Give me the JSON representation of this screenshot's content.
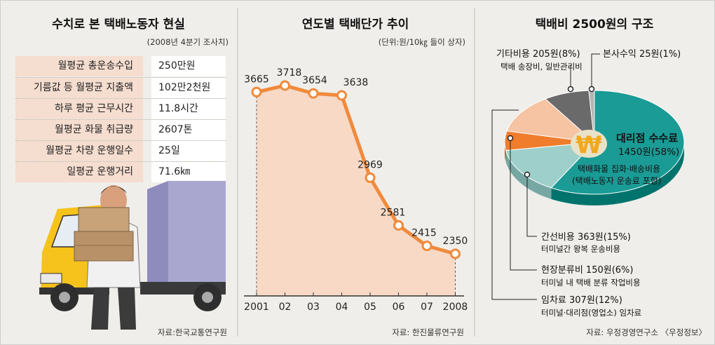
{
  "panel1": {
    "title": "수치로 본 택배노동자 현실",
    "note": "(2008년 4분기 조사치)",
    "rows": [
      {
        "label": "월평균 총운송수입",
        "value": "250만원"
      },
      {
        "label": "기름값 등 월평균 지출액",
        "value": "102만2천원"
      },
      {
        "label": "하루 평균 근무시간",
        "value": "11.8시간"
      },
      {
        "label": "월평균 화물 취급량",
        "value": "2607톤"
      },
      {
        "label": "월평균 차량 운행일수",
        "value": "25일"
      },
      {
        "label": "일평균 운행거리",
        "value": "71.6㎞"
      }
    ],
    "source": "자료:한국교통연구원",
    "illustration": "delivery-worker-with-truck"
  },
  "panel2": {
    "title": "연도별 택배단가 추이",
    "note": "(단위:원/10㎏ 들이 상자)",
    "source": "자료: 한진물류연구원"
  },
  "panel3": {
    "title": "택배비 2500원의 구조",
    "center_label_1": "대리점 수수료",
    "center_label_2": "1450원(58%)",
    "center_sub_1": "택배화물 집화·배송비용",
    "center_sub_2": "(택배노동자 운송료 포함)",
    "callouts": [
      {
        "main": "기타비용 205원(8%)",
        "sub": "택배 송장비, 일반관리비"
      },
      {
        "main": "본사수익 25원(1%)",
        "sub": ""
      },
      {
        "main": "간선비용 363원(15%)",
        "sub": "터미널간 왕복 운송비용"
      },
      {
        "main": "현장분류비 150원(6%)",
        "sub": "터미널 내 택배 분류 작업비용"
      },
      {
        "main": "임차료 307원(12%)",
        "sub": "터미널·대리점(영업소) 임차료"
      }
    ],
    "source": "자료: 우정경영연구소 〈우정정보〉",
    "won_icon": "won-sign-icon"
  },
  "colors": {
    "line": "#f08a3c",
    "area": "#f7d9c6",
    "agency": "#1a9b95",
    "trunk": "#9fcfcb",
    "sorting": "#ef7d2c",
    "rent": "#f6c3a3",
    "other": "#6a6a6a",
    "hq": "#b5b5b5"
  },
  "chart_data": [
    {
      "type": "line",
      "title": "연도별 택배단가 추이",
      "unit": "원/10㎏ 들이 상자",
      "x": [
        "2001",
        "02",
        "03",
        "04",
        "05",
        "06",
        "07",
        "2008"
      ],
      "series": [
        {
          "values": [
            3665,
            3718,
            3654,
            3638,
            2969,
            2581,
            2415,
            2350
          ]
        }
      ]
    },
    {
      "type": "pie",
      "title": "택배비 2500원의 구조",
      "slices": [
        {
          "label": "대리점 수수료",
          "value": 1450,
          "percent": 58
        },
        {
          "label": "간선비용",
          "value": 363,
          "percent": 15
        },
        {
          "label": "현장분류비",
          "value": 150,
          "percent": 6
        },
        {
          "label": "임차료",
          "value": 307,
          "percent": 12
        },
        {
          "label": "기타비용",
          "value": 205,
          "percent": 8
        },
        {
          "label": "본사수익",
          "value": 25,
          "percent": 1
        }
      ]
    }
  ]
}
